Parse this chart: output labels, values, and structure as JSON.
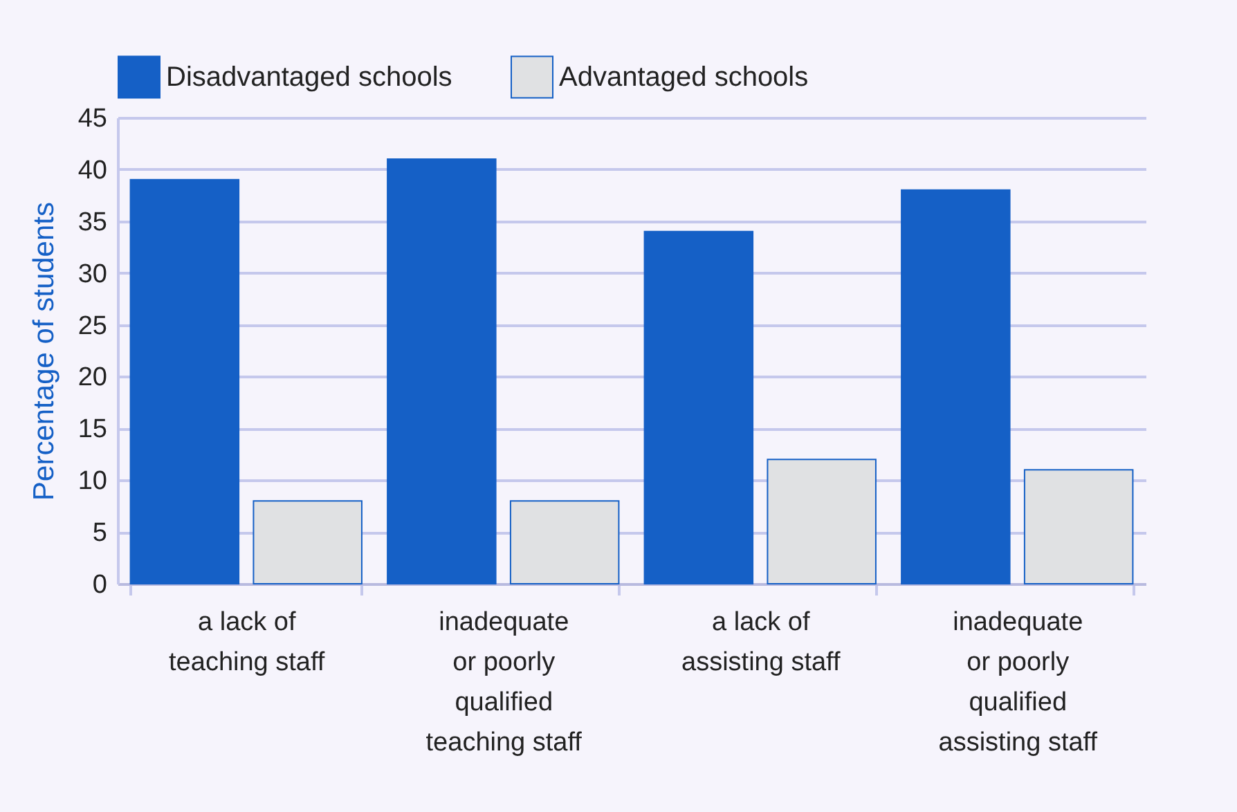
{
  "chart_data": {
    "type": "bar",
    "ylabel": "Percentage of students",
    "categories": [
      "a lack of\nteaching staff",
      "inadequate\nor poorly\nqualified\nteaching staff",
      "a lack of\nassisting staff",
      "inadequate\nor poorly\nqualified\nassisting staff"
    ],
    "series": [
      {
        "name": "Disadvantaged schools",
        "color": "#1560c6",
        "values": [
          39,
          41,
          34,
          38
        ]
      },
      {
        "name": "Advantaged schools",
        "color": "#e0e1e3",
        "values": [
          8,
          8,
          12,
          11
        ]
      }
    ],
    "ylim": [
      0,
      45
    ],
    "yticks": [
      0,
      5,
      10,
      15,
      20,
      25,
      30,
      35,
      40,
      45
    ],
    "grid": "y",
    "legend": "top left"
  }
}
